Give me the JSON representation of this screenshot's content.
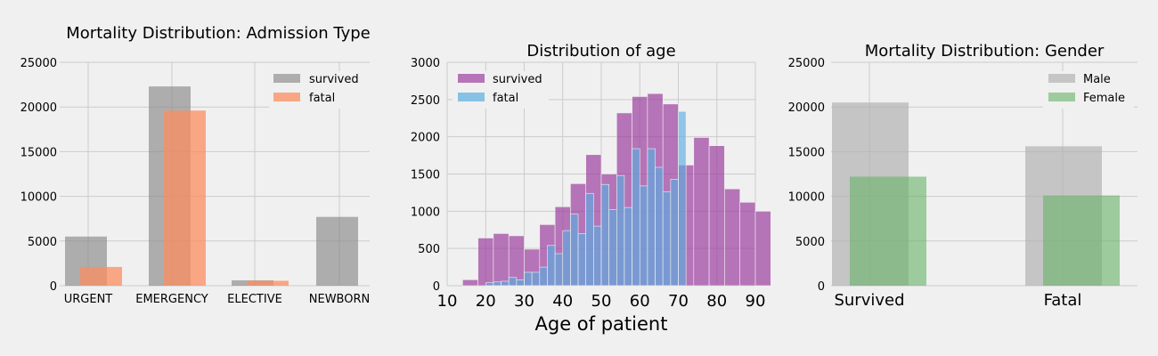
{
  "colors": {
    "survived_gray": "#888888",
    "fatal_orange": "#fc8d62",
    "survived_purple": "#9b3f9e",
    "fatal_blue": "#5aaee0",
    "male_gray": "#b2b2b2",
    "female_green": "#66b266",
    "grid": "#cbcbcb",
    "background": "#f0f0f0"
  },
  "chart_data": [
    {
      "type": "bar",
      "title": "Mortality Distribution: Admission Type",
      "categories": [
        "URGENT",
        "EMERGENCY",
        "ELECTIVE",
        "NEWBORN"
      ],
      "series": [
        {
          "name": "survived",
          "values": [
            5500,
            22300,
            600,
            7700
          ]
        },
        {
          "name": "fatal",
          "values": [
            2100,
            19600,
            550,
            0
          ]
        }
      ],
      "ylim": [
        0,
        25000
      ],
      "yticks": [
        "0",
        "5000",
        "10000",
        "15000",
        "20000",
        "25000"
      ],
      "grid": true,
      "legend": "top-right"
    },
    {
      "type": "bar",
      "title": "Distribution of age",
      "xlabel": "Age of patient",
      "xlim": [
        10,
        90
      ],
      "ylim": [
        0,
        3000
      ],
      "xticks": [
        "10",
        "20",
        "30",
        "40",
        "50",
        "60",
        "70",
        "80",
        "90"
      ],
      "yticks": [
        "0",
        "500",
        "1000",
        "1500",
        "2000",
        "2500",
        "3000"
      ],
      "bin_start": 14,
      "bin_width": 4,
      "series": [
        {
          "name": "survived",
          "values": [
            80,
            640,
            700,
            670,
            490,
            820,
            1060,
            1370,
            1760,
            1500,
            2320,
            2540,
            2580,
            2440,
            1620,
            1990,
            1880,
            1300,
            1120,
            1000
          ]
        },
        {
          "name": "fatal",
          "values": [
            0,
            40,
            50,
            60,
            110,
            80,
            180,
            180,
            250,
            540,
            430,
            740,
            960,
            700,
            1240,
            800,
            1360,
            1020,
            1480,
            1050,
            1840,
            1340,
            1840,
            1590,
            1260,
            1430,
            2340
          ]
        }
      ],
      "fatal_bin_width": 2,
      "fatal_bin_start": 18,
      "grid": true,
      "legend": "top-left"
    },
    {
      "type": "bar",
      "title": "Mortality Distribution: Gender",
      "categories": [
        "Survived",
        "Fatal"
      ],
      "series": [
        {
          "name": "Male",
          "values": [
            20500,
            15600
          ]
        },
        {
          "name": "Female",
          "values": [
            12200,
            10100
          ]
        }
      ],
      "ylim": [
        0,
        25000
      ],
      "yticks": [
        "0",
        "5000",
        "10000",
        "15000",
        "20000",
        "25000"
      ],
      "grid": true,
      "legend": "top-right"
    }
  ]
}
